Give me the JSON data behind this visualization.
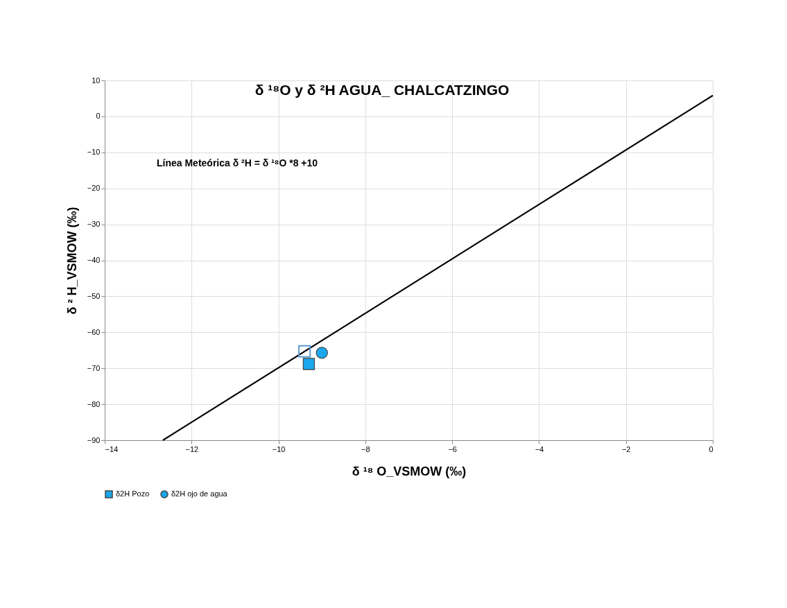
{
  "chart_data": {
    "type": "scatter",
    "title": "δ ¹⁸O  y δ ²H  AGUA_ CHALCATZINGO",
    "xlabel": "δ ¹⁸ O_VSMOW (‰)",
    "ylabel": "δ ² H_VSMOW (‰)",
    "annotations": [
      "Línea Meteórica  δ ²H = δ ¹⁸O  *8 +10"
    ],
    "series": [
      {
        "type": "line",
        "color": "#000000",
        "marker": "none",
        "x": [
          -12.66,
          0
        ],
        "values": [
          -90,
          5.8
        ]
      },
      {
        "name": "δ2H  Pozo",
        "color": "#1aa7ec",
        "marker": "square",
        "x": [
          -9.3
        ],
        "values": [
          -68.8
        ]
      },
      {
        "color": "#5b9bd5",
        "marker": "square",
        "x": [
          -9.4
        ],
        "values": [
          -65.3
        ]
      },
      {
        "name": "δ2H  ojo de agua",
        "color": "#1aa7ec",
        "marker": "circle",
        "x": [
          -9.0
        ],
        "values": [
          -65.7
        ]
      }
    ],
    "xlim": [
      -14,
      0
    ],
    "xticks": [
      -14,
      -12,
      -10,
      -8,
      -6,
      -4,
      -2,
      0
    ],
    "ylim": [
      -90,
      10
    ],
    "yticks": [
      -90,
      -80,
      -70,
      -60,
      -50,
      -40,
      -30,
      -20,
      -10,
      0,
      10
    ],
    "grid": true,
    "legend": "bottom"
  }
}
